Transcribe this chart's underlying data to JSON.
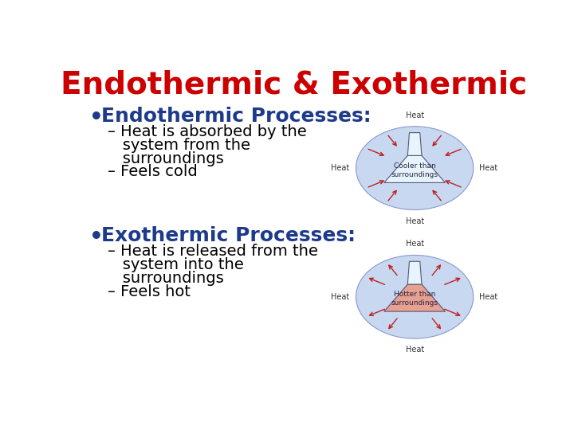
{
  "title": "Endothermic & Exothermic",
  "title_color": "#CC0000",
  "title_fontsize": 28,
  "title_fontweight": "bold",
  "bg_color": "#FFFFFF",
  "bullet_color": "#1E3A8A",
  "bullet_fontsize": 18,
  "sub_fontsize": 14,
  "sub_color": "#000000",
  "bullet1_header": "Endothermic Processes:",
  "bullet1_lines": [
    "– Heat is absorbed by the",
    "   system from the",
    "   surroundings",
    "– Feels cold"
  ],
  "bullet2_header": "Exothermic Processes:",
  "bullet2_lines": [
    "– Heat is released from the",
    "   system into the",
    "   surroundings",
    "– Feels hot"
  ],
  "figwidth": 7.2,
  "figheight": 5.4,
  "dpi": 100,
  "endo_ellipse_color": "#C8D8F0",
  "endo_flask_color": "#E8F4FC",
  "endo_label": "Cooler than\nsurroundings",
  "exo_ellipse_color": "#C8D8F0",
  "exo_flask_body_color": "#E8A090",
  "exo_flask_neck_color": "#E8F4FC",
  "exo_label": "Hotter than\nsurroundings",
  "arrow_color": "#BB2222",
  "heat_label_color": "#333333",
  "heat_fontsize": 7
}
